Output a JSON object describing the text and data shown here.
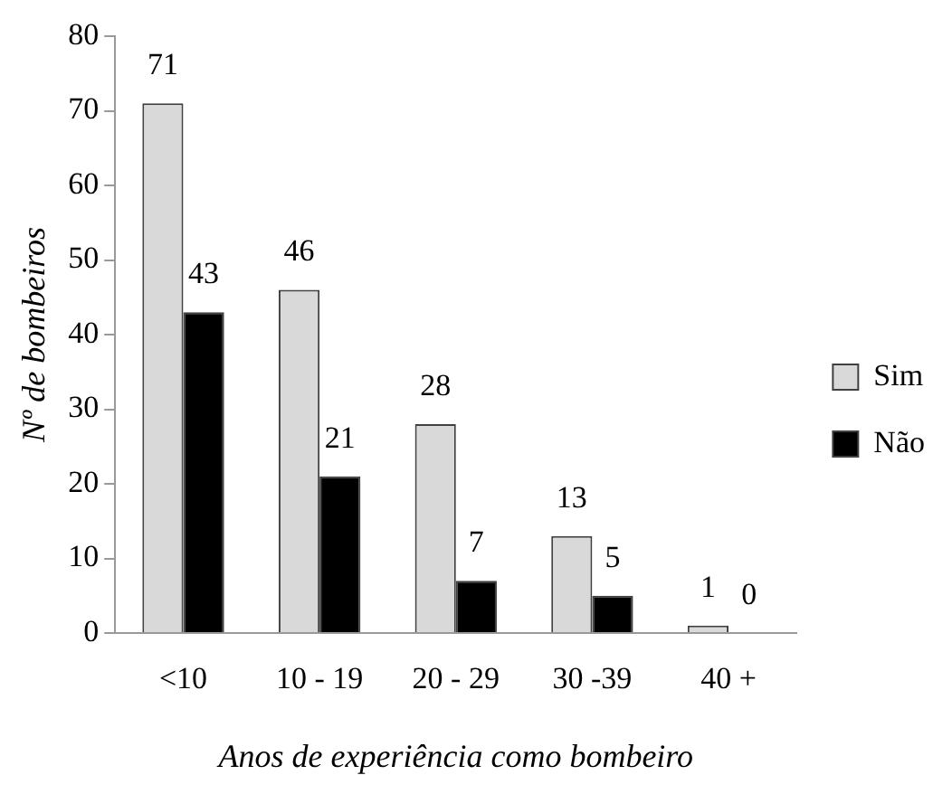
{
  "chart_data": {
    "type": "bar",
    "xlabel": "Anos de experiência como bombeiro",
    "ylabel": "Nº de bombeiros",
    "categories": [
      "<10",
      "10 - 19",
      "20 - 29",
      "30 -39",
      "40 +"
    ],
    "series": [
      {
        "name": "Sim",
        "color": "#d9d9d9",
        "values": [
          71,
          46,
          28,
          13,
          1
        ]
      },
      {
        "name": "Não",
        "color": "#000000",
        "values": [
          43,
          21,
          7,
          5,
          0
        ]
      }
    ],
    "ylim": [
      0,
      80
    ],
    "yticks": [
      0,
      10,
      20,
      30,
      40,
      50,
      60,
      70,
      80
    ],
    "grid": false,
    "legend": "right",
    "data_labels": true
  }
}
